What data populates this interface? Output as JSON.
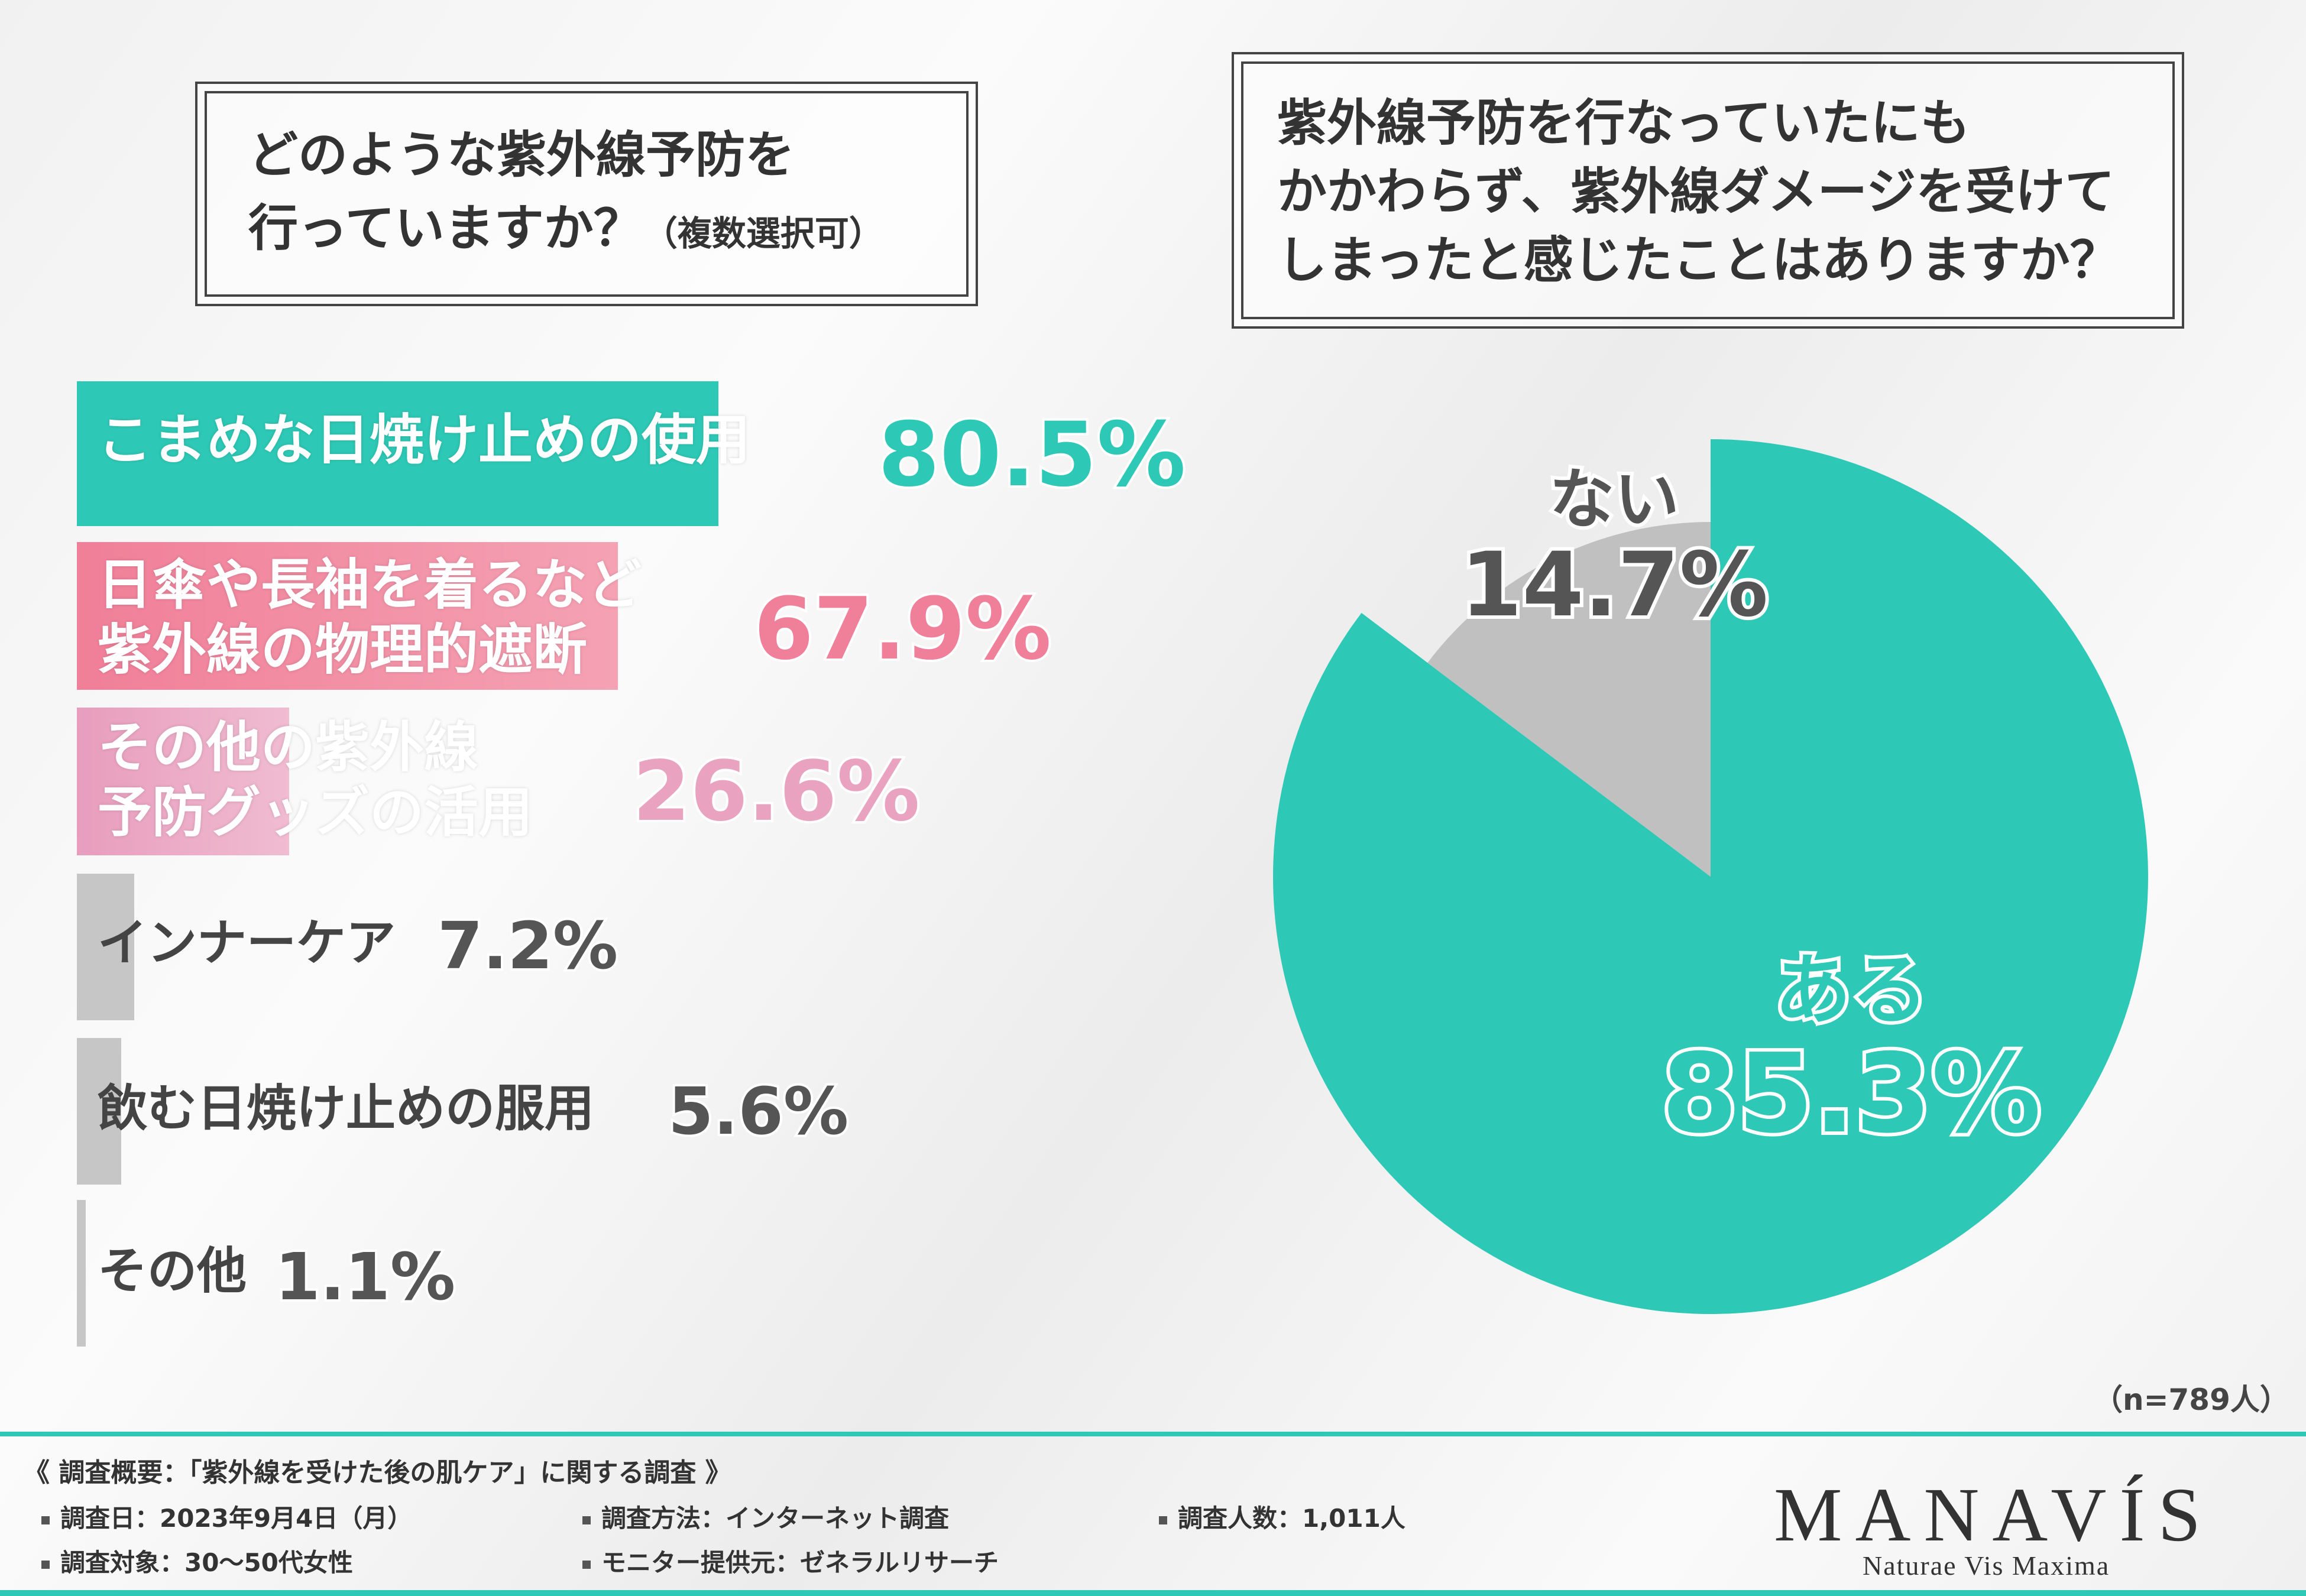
{
  "left_question": {
    "line1": "どのような紫外線予防を",
    "line2": "行っていますか？",
    "note": "（複数選択可）"
  },
  "right_question": {
    "line1": "紫外線予防を行なっていたにも",
    "line2": "かかわらず、紫外線ダメージを受けて",
    "line3": "しまったと感じたことはありますか？"
  },
  "chart_data": [
    {
      "type": "bar",
      "title": "どのような紫外線予防を行っていますか？（複数選択可）",
      "categories": [
        "こまめな日焼け止めの使用",
        "日傘や長袖を着るなど紫外線の物理的遮断",
        "その他の紫外線予防グッズの活用",
        "インナーケア",
        "飲む日焼け止めの服用",
        "その他"
      ],
      "values": [
        80.5,
        67.9,
        26.6,
        7.2,
        5.6,
        1.1
      ],
      "unit": "%",
      "xlim": [
        0,
        100
      ],
      "labels": [
        {
          "line1": "こまめな日焼け止めの使用",
          "line2": "",
          "value": "80.5%"
        },
        {
          "line1": "日傘や長袖を着るなど",
          "line2": "紫外線の物理的遮断",
          "value": "67.9%"
        },
        {
          "line1": "その他の紫外線",
          "line2": "予防グッズの活用",
          "value": "26.6%"
        },
        {
          "line1": "インナーケア",
          "line2": "",
          "value": "7.2%"
        },
        {
          "line1": "飲む日焼け止めの服用",
          "line2": "",
          "value": "5.6%"
        },
        {
          "line1": "その他",
          "line2": "",
          "value": "1.1%"
        }
      ],
      "colors": [
        "#2ec9b6",
        "#f0809a",
        "#e9a3c0",
        "#c6c6c6",
        "#c6c6c6",
        "#c6c6c6"
      ],
      "value_colors": [
        "#2ec9b6",
        "#f0809a",
        "#e9a3c0",
        "#555555",
        "#555555",
        "#555555"
      ]
    },
    {
      "type": "pie",
      "title": "紫外線予防を行なっていたにもかかわらず、紫外線ダメージを受けてしまったと感じたことはありますか？",
      "categories": [
        "ある",
        "ない"
      ],
      "values": [
        85.3,
        14.7
      ],
      "value_labels": [
        "85.3%",
        "14.7%"
      ],
      "colors": [
        "#2ec9b6",
        "#c0c0c0"
      ],
      "label_colors": [
        "#2ec9b6",
        "#555555"
      ],
      "sample": "（n=789人）"
    }
  ],
  "footer": {
    "heading": "《 調査概要：「紫外線を受けた後の肌ケア」に関する調査 》",
    "items": [
      "調査日：2023年9月4日（月）",
      "調査方法：インターネット調査",
      "調査人数：1,011人",
      "調査対象：30〜50代女性",
      "モニター提供元：ゼネラルリサーチ"
    ]
  },
  "logo": {
    "name": "MANAVÍS",
    "tagline": "Naturae Vis Maxima"
  }
}
